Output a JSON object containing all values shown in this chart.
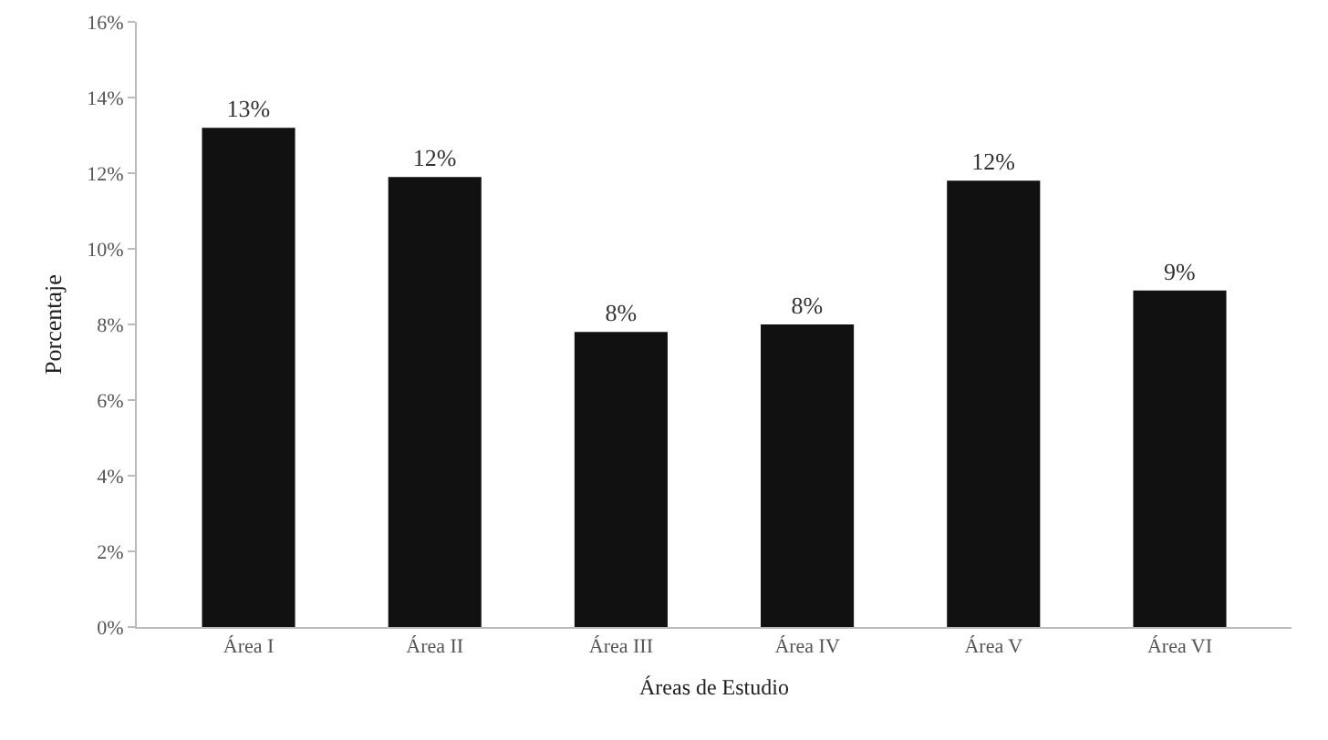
{
  "chart_data": {
    "type": "bar",
    "xlabel": "Áreas de Estudio",
    "ylabel": "Porcentaje",
    "categories": [
      "Área I",
      "Área II",
      "Área III",
      "Área IV",
      "Área V",
      "Área VI"
    ],
    "values": [
      13.2,
      11.9,
      7.8,
      8.0,
      11.8,
      8.9
    ],
    "value_labels": [
      "13%",
      "12%",
      "8%",
      "8%",
      "12%",
      "9%"
    ],
    "color": "#111111",
    "ylim": [
      0,
      16
    ],
    "yticks": [
      {
        "value": 0,
        "label": "0%"
      },
      {
        "value": 2,
        "label": "2%"
      },
      {
        "value": 4,
        "label": "4%"
      },
      {
        "value": 6,
        "label": "6%"
      },
      {
        "value": 8,
        "label": "8%"
      },
      {
        "value": 10,
        "label": "10%"
      },
      {
        "value": 12,
        "label": "12%"
      },
      {
        "value": 14,
        "label": "14%"
      },
      {
        "value": 16,
        "label": "16%"
      }
    ],
    "grid": false
  }
}
